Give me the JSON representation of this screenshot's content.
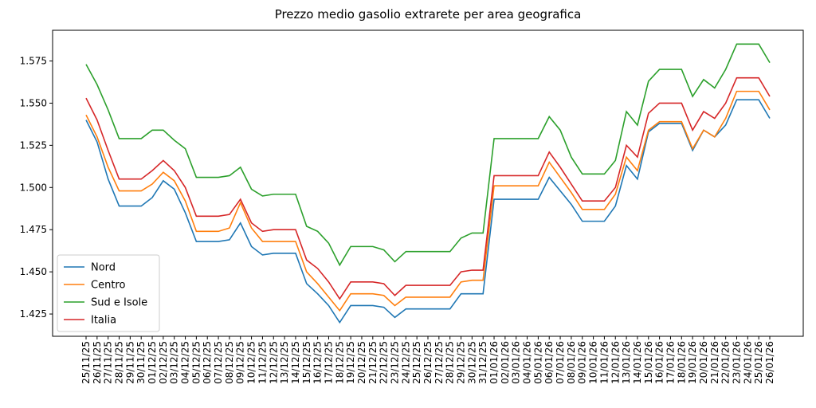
{
  "chart_data": {
    "type": "line",
    "title": "Prezzo medio gasolio extrarete per area geografica",
    "categories": [
      "25/11/25",
      "26/11/25",
      "27/11/25",
      "28/11/25",
      "29/11/25",
      "30/11/25",
      "01/12/25",
      "02/12/25",
      "03/12/25",
      "04/12/25",
      "05/12/25",
      "06/12/25",
      "07/12/25",
      "08/12/25",
      "09/12/25",
      "10/12/25",
      "11/12/25",
      "12/12/25",
      "13/12/25",
      "14/12/25",
      "15/12/25",
      "16/12/25",
      "17/12/25",
      "18/12/25",
      "19/12/25",
      "20/12/25",
      "21/12/25",
      "22/12/25",
      "23/12/25",
      "24/12/25",
      "25/12/25",
      "26/12/25",
      "27/12/25",
      "28/12/25",
      "29/12/25",
      "30/12/25",
      "31/12/25",
      "01/01/26",
      "02/01/26",
      "03/01/26",
      "04/01/26",
      "05/01/26",
      "06/01/26",
      "07/01/26",
      "08/01/26",
      "09/01/26",
      "10/01/26",
      "11/01/26",
      "12/01/26",
      "13/01/26",
      "14/01/26",
      "15/01/26",
      "16/01/26",
      "17/01/26",
      "18/01/26",
      "19/01/26",
      "20/01/26",
      "21/01/26",
      "22/01/26",
      "23/01/26",
      "24/01/26",
      "25/01/26",
      "26/01/26"
    ],
    "series": [
      {
        "name": "Nord",
        "color": "#1f77b4",
        "values": [
          1.54,
          1.527,
          1.505,
          1.489,
          1.489,
          1.489,
          1.494,
          1.504,
          1.499,
          1.485,
          1.468,
          1.468,
          1.468,
          1.469,
          1.479,
          1.465,
          1.46,
          1.461,
          1.461,
          1.461,
          1.443,
          1.437,
          1.43,
          1.42,
          1.43,
          1.43,
          1.43,
          1.429,
          1.423,
          1.428,
          1.428,
          1.428,
          1.428,
          1.428,
          1.437,
          1.437,
          1.437,
          1.493,
          1.493,
          1.493,
          1.493,
          1.493,
          1.506,
          1.498,
          1.49,
          1.48,
          1.48,
          1.48,
          1.489,
          1.513,
          1.505,
          1.533,
          1.538,
          1.538,
          1.538,
          1.522,
          1.534,
          1.53,
          1.537,
          1.552,
          1.552,
          1.552,
          1.541
        ]
      },
      {
        "name": "Centro",
        "color": "#ff7f0e",
        "values": [
          1.543,
          1.53,
          1.512,
          1.498,
          1.498,
          1.498,
          1.502,
          1.509,
          1.504,
          1.492,
          1.474,
          1.474,
          1.474,
          1.476,
          1.491,
          1.476,
          1.468,
          1.468,
          1.468,
          1.468,
          1.45,
          1.443,
          1.435,
          1.427,
          1.437,
          1.437,
          1.437,
          1.436,
          1.43,
          1.435,
          1.435,
          1.435,
          1.435,
          1.435,
          1.444,
          1.445,
          1.445,
          1.501,
          1.501,
          1.501,
          1.501,
          1.501,
          1.515,
          1.506,
          1.497,
          1.487,
          1.487,
          1.487,
          1.496,
          1.518,
          1.51,
          1.534,
          1.539,
          1.539,
          1.539,
          1.523,
          1.534,
          1.53,
          1.541,
          1.557,
          1.557,
          1.557,
          1.546
        ]
      },
      {
        "name": "Sud e Isole",
        "color": "#2ca02c",
        "values": [
          1.573,
          1.561,
          1.546,
          1.529,
          1.529,
          1.529,
          1.534,
          1.534,
          1.528,
          1.523,
          1.506,
          1.506,
          1.506,
          1.507,
          1.512,
          1.499,
          1.495,
          1.496,
          1.496,
          1.496,
          1.477,
          1.474,
          1.467,
          1.454,
          1.465,
          1.465,
          1.465,
          1.463,
          1.456,
          1.462,
          1.462,
          1.462,
          1.462,
          1.462,
          1.47,
          1.473,
          1.473,
          1.529,
          1.529,
          1.529,
          1.529,
          1.529,
          1.542,
          1.534,
          1.518,
          1.508,
          1.508,
          1.508,
          1.516,
          1.545,
          1.537,
          1.563,
          1.57,
          1.57,
          1.57,
          1.554,
          1.564,
          1.559,
          1.57,
          1.585,
          1.585,
          1.585,
          1.574
        ]
      },
      {
        "name": "Italia",
        "color": "#d62728",
        "values": [
          1.553,
          1.54,
          1.522,
          1.505,
          1.505,
          1.505,
          1.51,
          1.516,
          1.51,
          1.5,
          1.483,
          1.483,
          1.483,
          1.484,
          1.493,
          1.479,
          1.474,
          1.475,
          1.475,
          1.475,
          1.457,
          1.452,
          1.444,
          1.434,
          1.444,
          1.444,
          1.444,
          1.443,
          1.436,
          1.442,
          1.442,
          1.442,
          1.442,
          1.442,
          1.45,
          1.451,
          1.451,
          1.507,
          1.507,
          1.507,
          1.507,
          1.507,
          1.521,
          1.512,
          1.502,
          1.492,
          1.492,
          1.492,
          1.5,
          1.525,
          1.518,
          1.544,
          1.55,
          1.55,
          1.55,
          1.534,
          1.545,
          1.541,
          1.55,
          1.565,
          1.565,
          1.565,
          1.554
        ]
      }
    ],
    "ylim": [
      1.4118,
      1.5932
    ],
    "yticks": [
      1.425,
      {
        "value": 1.45,
        "label": "1.450"
      },
      1.475,
      {
        "value": 1.5,
        "label": "1.500"
      },
      1.525,
      {
        "value": 1.55,
        "label": "1.550"
      },
      1.575
    ],
    "grid": false,
    "legend": "lower left"
  }
}
